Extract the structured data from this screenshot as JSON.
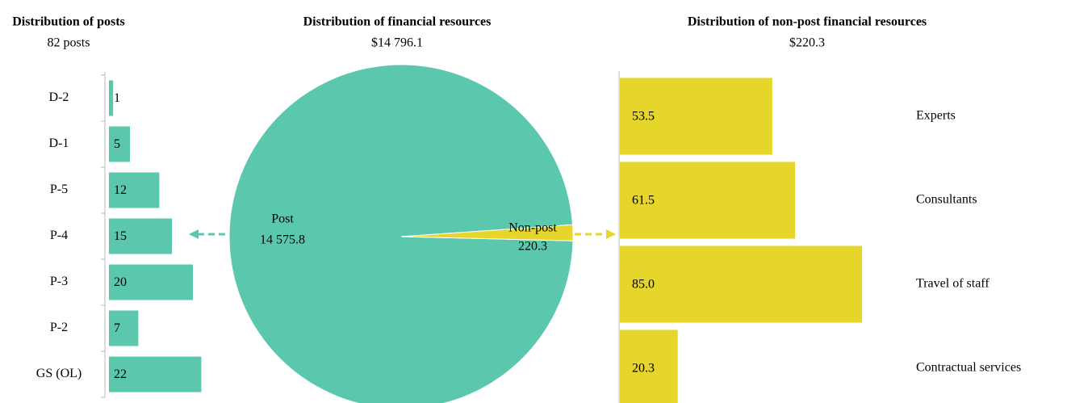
{
  "chart_data": [
    {
      "type": "bar",
      "title": "Distribution of posts",
      "subtitle": "82 posts",
      "categories": [
        "D-2",
        "D-1",
        "P-5",
        "P-4",
        "P-3",
        "P-2",
        "GS (OL)"
      ],
      "values": [
        1,
        5,
        12,
        15,
        20,
        7,
        22
      ],
      "color": "#5bc8ae"
    },
    {
      "type": "pie",
      "title": "Distribution of financial resources",
      "subtitle": "$14 796.1",
      "categories": [
        "Post",
        "Non-post"
      ],
      "values": [
        14575.8,
        220.3
      ],
      "value_labels": [
        "14 575.8",
        "220.3"
      ],
      "colors": [
        "#5bc8ae",
        "#e6d52a"
      ]
    },
    {
      "type": "bar",
      "title": "Distribution of non-post financial resources",
      "subtitle": "$220.3",
      "categories": [
        "Experts",
        "Consultants",
        "Travel of staff",
        "Contractual services"
      ],
      "values": [
        53.5,
        61.5,
        85.0,
        20.3
      ],
      "value_labels": [
        "53.5",
        "61.5",
        "85.0",
        "20.3"
      ],
      "color": "#e6d52a"
    }
  ]
}
